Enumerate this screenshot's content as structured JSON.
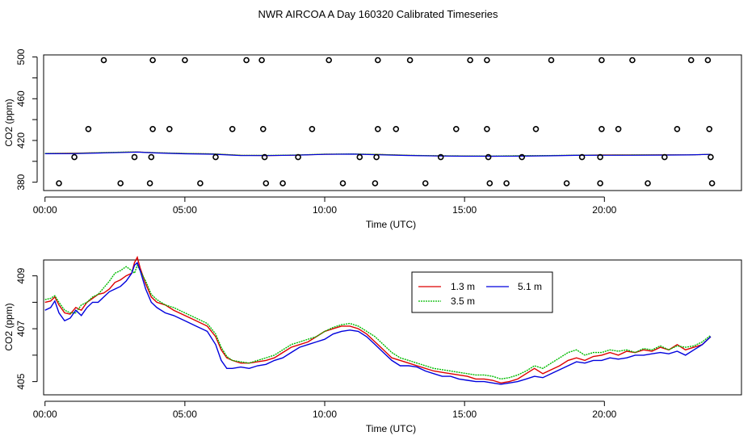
{
  "figure": {
    "title": "NWR AIRCOA A  Day 160320  Calibrated Timeseries"
  },
  "colors": {
    "red": "#dd0000",
    "green": "#00bb00",
    "blue": "#0000dd",
    "axis": "#000000"
  },
  "chart_data": [
    {
      "type": "scatter",
      "name": "top-panel",
      "xlabel": "Time (UTC)",
      "ylabel": "CO2 (ppm)",
      "xlim": [
        -0.05,
        24.9
      ],
      "ylim": [
        372,
        502
      ],
      "xticks": [
        0,
        5,
        10,
        15,
        20
      ],
      "xtick_labels": [
        "00:00",
        "05:00",
        "10:00",
        "15:00",
        "20:00"
      ],
      "yticks": [
        380,
        420,
        460,
        500
      ],
      "ytick_labels": [
        "380",
        "420",
        "460",
        "500"
      ],
      "ytick_minor": [
        400,
        440,
        480
      ],
      "points": {
        "x": [
          2.1,
          3.85,
          5.0,
          7.2,
          7.75,
          10.15,
          11.9,
          13.05,
          15.2,
          15.8,
          18.1,
          19.9,
          21.0,
          23.1,
          23.7,
          1.55,
          3.85,
          4.45,
          6.7,
          7.8,
          9.55,
          11.9,
          12.55,
          14.7,
          15.8,
          17.55,
          19.9,
          20.5,
          22.6,
          23.75,
          1.05,
          3.2,
          3.8,
          6.1,
          7.85,
          9.05,
          11.25,
          11.85,
          14.15,
          15.85,
          17.05,
          19.2,
          19.85,
          22.15,
          23.8,
          0.5,
          2.7,
          3.75,
          5.55,
          7.9,
          8.5,
          10.65,
          11.8,
          13.6,
          15.9,
          16.5,
          18.65,
          19.85,
          21.55,
          23.85
        ],
        "y": [
          497,
          497,
          497,
          497,
          497,
          497,
          497,
          497,
          497,
          497,
          497,
          497,
          497,
          497,
          497,
          431,
          431,
          431,
          431,
          431,
          431,
          431,
          431,
          431,
          431,
          431,
          431,
          431,
          431,
          431,
          404,
          404,
          404,
          404,
          404,
          404,
          404,
          404,
          404,
          404,
          404,
          404,
          404,
          404,
          404,
          379,
          379,
          379,
          379,
          379,
          379,
          379,
          379,
          379,
          379,
          379,
          379,
          379,
          379,
          379
        ]
      },
      "series": [
        {
          "name": "1.3 m",
          "color": "#dd0000",
          "x": [
            0,
            1,
            2,
            3,
            3.3,
            4,
            5,
            6,
            7,
            8,
            9,
            10,
            11,
            12,
            13,
            14,
            15,
            16,
            17,
            18,
            19,
            20,
            21,
            22,
            23,
            23.8
          ],
          "y": [
            407.5,
            407.8,
            408.3,
            408.9,
            409.0,
            408.2,
            407.5,
            407.1,
            405.8,
            405.6,
            406.0,
            406.8,
            407.0,
            406.5,
            405.7,
            405.3,
            405.1,
            404.9,
            405.2,
            405.4,
            405.9,
            406.1,
            406.2,
            406.3,
            406.2,
            406.7
          ]
        },
        {
          "name": "3.5 m",
          "color": "#00bb00",
          "x": [
            0,
            1,
            2,
            3,
            3.3,
            4,
            5,
            6,
            7,
            8,
            9,
            10,
            11,
            12,
            13,
            14,
            15,
            16,
            17,
            18,
            19,
            20,
            21,
            22,
            23,
            23.8
          ],
          "y": [
            407.6,
            407.7,
            408.4,
            409.0,
            408.9,
            408.3,
            407.6,
            407.2,
            405.8,
            405.7,
            406.1,
            406.9,
            407.1,
            406.6,
            405.8,
            405.4,
            405.2,
            405.1,
            405.4,
            405.6,
            406.0,
            406.0,
            406.1,
            406.2,
            406.2,
            406.7
          ]
        },
        {
          "name": "5.1 m",
          "color": "#0000dd",
          "x": [
            0,
            1,
            2,
            3,
            3.3,
            4,
            5,
            6,
            7,
            8,
            9,
            10,
            11,
            12,
            13,
            14,
            15,
            16,
            17,
            18,
            19,
            20,
            21,
            22,
            23,
            23.8
          ],
          "y": [
            407.3,
            407.4,
            408.0,
            408.6,
            408.8,
            408.0,
            407.2,
            406.8,
            405.5,
            405.5,
            405.9,
            406.7,
            406.9,
            406.2,
            405.6,
            405.1,
            404.9,
            404.9,
            405.0,
            405.3,
            405.7,
            405.8,
            405.8,
            406.0,
            406.1,
            406.7
          ]
        }
      ]
    },
    {
      "type": "line",
      "name": "bottom-panel",
      "xlabel": "Time (UTC)",
      "ylabel": "CO2 (ppm)",
      "xlim": [
        -0.05,
        24.9
      ],
      "ylim": [
        404.5,
        409.6
      ],
      "xticks": [
        0,
        5,
        10,
        15,
        20
      ],
      "xtick_labels": [
        "00:00",
        "05:00",
        "10:00",
        "15:00",
        "20:00"
      ],
      "yticks": [
        405,
        407,
        409
      ],
      "ytick_labels": [
        "405",
        "407",
        "409"
      ],
      "ytick_minor": [
        406,
        408
      ],
      "legend": {
        "placement": "top-center",
        "entries": [
          "1.3 m",
          "5.1 m",
          "3.5 m"
        ]
      },
      "series": [
        {
          "name": "1.3 m",
          "color": "#dd0000",
          "x": [
            0,
            0.2,
            0.35,
            0.5,
            0.7,
            0.9,
            1.1,
            1.3,
            1.5,
            1.7,
            1.9,
            2.1,
            2.3,
            2.5,
            2.7,
            2.9,
            3.1,
            3.2,
            3.3,
            3.4,
            3.6,
            3.8,
            4.0,
            4.3,
            4.6,
            5.0,
            5.4,
            5.8,
            6.1,
            6.3,
            6.5,
            6.7,
            7.0,
            7.3,
            7.6,
            7.9,
            8.2,
            8.5,
            8.8,
            9.1,
            9.4,
            9.7,
            10.0,
            10.3,
            10.6,
            10.9,
            11.2,
            11.5,
            11.8,
            12.1,
            12.4,
            12.7,
            13.0,
            13.3,
            13.6,
            13.9,
            14.2,
            14.5,
            14.8,
            15.1,
            15.4,
            15.7,
            16.0,
            16.3,
            16.6,
            16.9,
            17.2,
            17.5,
            17.8,
            18.1,
            18.4,
            18.7,
            19.0,
            19.3,
            19.6,
            19.9,
            20.2,
            20.5,
            20.8,
            21.1,
            21.4,
            21.7,
            22.0,
            22.3,
            22.6,
            22.9,
            23.2,
            23.5,
            23.8
          ],
          "y": [
            408.0,
            408.05,
            408.2,
            407.9,
            407.6,
            407.55,
            407.8,
            407.7,
            408.0,
            408.15,
            408.3,
            408.35,
            408.5,
            408.75,
            408.85,
            409.0,
            409.1,
            409.5,
            409.7,
            409.3,
            408.7,
            408.2,
            408.0,
            407.9,
            407.7,
            407.5,
            407.3,
            407.1,
            406.7,
            406.2,
            405.9,
            405.8,
            405.7,
            405.7,
            405.75,
            405.8,
            405.9,
            406.1,
            406.3,
            406.4,
            406.5,
            406.7,
            406.9,
            407.0,
            407.1,
            407.1,
            407.0,
            406.8,
            406.5,
            406.2,
            405.9,
            405.8,
            405.7,
            405.6,
            405.5,
            405.4,
            405.35,
            405.3,
            405.25,
            405.2,
            405.1,
            405.1,
            405.05,
            404.95,
            405.0,
            405.1,
            405.3,
            405.5,
            405.3,
            405.45,
            405.6,
            405.8,
            405.9,
            405.8,
            405.95,
            406.0,
            406.1,
            406.0,
            406.15,
            406.1,
            406.2,
            406.15,
            406.3,
            406.2,
            406.4,
            406.2,
            406.3,
            406.4,
            406.7
          ]
        },
        {
          "name": "3.5 m",
          "color": "#00bb00",
          "x": [
            0,
            0.2,
            0.35,
            0.5,
            0.7,
            0.9,
            1.1,
            1.3,
            1.5,
            1.7,
            1.9,
            2.1,
            2.3,
            2.5,
            2.7,
            2.9,
            3.1,
            3.2,
            3.3,
            3.4,
            3.6,
            3.8,
            4.0,
            4.3,
            4.6,
            5.0,
            5.4,
            5.8,
            6.1,
            6.3,
            6.5,
            6.7,
            7.0,
            7.3,
            7.6,
            7.9,
            8.2,
            8.5,
            8.8,
            9.1,
            9.4,
            9.7,
            10.0,
            10.3,
            10.6,
            10.9,
            11.2,
            11.5,
            11.8,
            12.1,
            12.4,
            12.7,
            13.0,
            13.3,
            13.6,
            13.9,
            14.2,
            14.5,
            14.8,
            15.1,
            15.4,
            15.7,
            16.0,
            16.3,
            16.6,
            16.9,
            17.2,
            17.5,
            17.8,
            18.1,
            18.4,
            18.7,
            19.0,
            19.3,
            19.6,
            19.9,
            20.2,
            20.5,
            20.8,
            21.1,
            21.4,
            21.7,
            22.0,
            22.3,
            22.6,
            22.9,
            23.2,
            23.5,
            23.8
          ],
          "y": [
            408.1,
            408.15,
            408.25,
            408.0,
            407.7,
            407.6,
            407.6,
            407.9,
            408.0,
            408.2,
            408.3,
            408.55,
            408.8,
            409.1,
            409.2,
            409.35,
            409.2,
            409.1,
            409.4,
            409.2,
            408.8,
            408.3,
            408.1,
            407.9,
            407.8,
            407.6,
            407.4,
            407.2,
            406.8,
            406.3,
            405.95,
            405.8,
            405.75,
            405.7,
            405.8,
            405.9,
            406.0,
            406.2,
            406.4,
            406.5,
            406.6,
            406.7,
            406.9,
            407.05,
            407.15,
            407.2,
            407.1,
            406.9,
            406.7,
            406.4,
            406.1,
            405.9,
            405.8,
            405.7,
            405.6,
            405.5,
            405.45,
            405.4,
            405.35,
            405.3,
            405.25,
            405.25,
            405.2,
            405.1,
            405.15,
            405.25,
            405.4,
            405.6,
            405.5,
            405.7,
            405.9,
            406.1,
            406.2,
            406.0,
            406.1,
            406.1,
            406.2,
            406.15,
            406.2,
            406.1,
            406.25,
            406.2,
            406.35,
            406.2,
            406.35,
            406.3,
            406.35,
            406.5,
            406.75
          ]
        },
        {
          "name": "5.1 m",
          "color": "#0000dd",
          "x": [
            0,
            0.2,
            0.35,
            0.5,
            0.7,
            0.9,
            1.1,
            1.3,
            1.5,
            1.7,
            1.9,
            2.1,
            2.3,
            2.5,
            2.7,
            2.9,
            3.1,
            3.2,
            3.3,
            3.4,
            3.6,
            3.8,
            4.0,
            4.3,
            4.6,
            5.0,
            5.4,
            5.8,
            6.1,
            6.3,
            6.5,
            6.7,
            7.0,
            7.3,
            7.6,
            7.9,
            8.2,
            8.5,
            8.8,
            9.1,
            9.4,
            9.7,
            10.0,
            10.3,
            10.6,
            10.9,
            11.2,
            11.5,
            11.8,
            12.1,
            12.4,
            12.7,
            13.0,
            13.3,
            13.6,
            13.9,
            14.2,
            14.5,
            14.8,
            15.1,
            15.4,
            15.7,
            16.0,
            16.3,
            16.6,
            16.9,
            17.2,
            17.5,
            17.8,
            18.1,
            18.4,
            18.7,
            19.0,
            19.3,
            19.6,
            19.9,
            20.2,
            20.5,
            20.8,
            21.1,
            21.4,
            21.7,
            22.0,
            22.3,
            22.6,
            22.9,
            23.2,
            23.5,
            23.8
          ],
          "y": [
            407.7,
            407.8,
            408.05,
            407.6,
            407.3,
            407.4,
            407.7,
            407.5,
            407.8,
            408.0,
            408.0,
            408.2,
            408.4,
            408.5,
            408.6,
            408.8,
            409.1,
            409.4,
            409.5,
            409.2,
            408.5,
            408.0,
            407.8,
            407.6,
            407.5,
            407.3,
            407.1,
            406.9,
            406.4,
            405.8,
            405.5,
            405.5,
            405.55,
            405.5,
            405.6,
            405.65,
            405.8,
            405.9,
            406.1,
            406.3,
            406.4,
            406.5,
            406.6,
            406.8,
            406.9,
            406.95,
            406.9,
            406.7,
            406.4,
            406.1,
            405.8,
            405.6,
            405.6,
            405.55,
            405.4,
            405.3,
            405.2,
            405.2,
            405.1,
            405.05,
            405.0,
            405.0,
            404.95,
            404.9,
            404.95,
            405.0,
            405.1,
            405.2,
            405.15,
            405.3,
            405.45,
            405.6,
            405.75,
            405.7,
            405.8,
            405.8,
            405.9,
            405.85,
            405.9,
            406.0,
            406.0,
            406.05,
            406.1,
            406.05,
            406.15,
            406.0,
            406.2,
            406.4,
            406.7
          ]
        }
      ]
    }
  ]
}
